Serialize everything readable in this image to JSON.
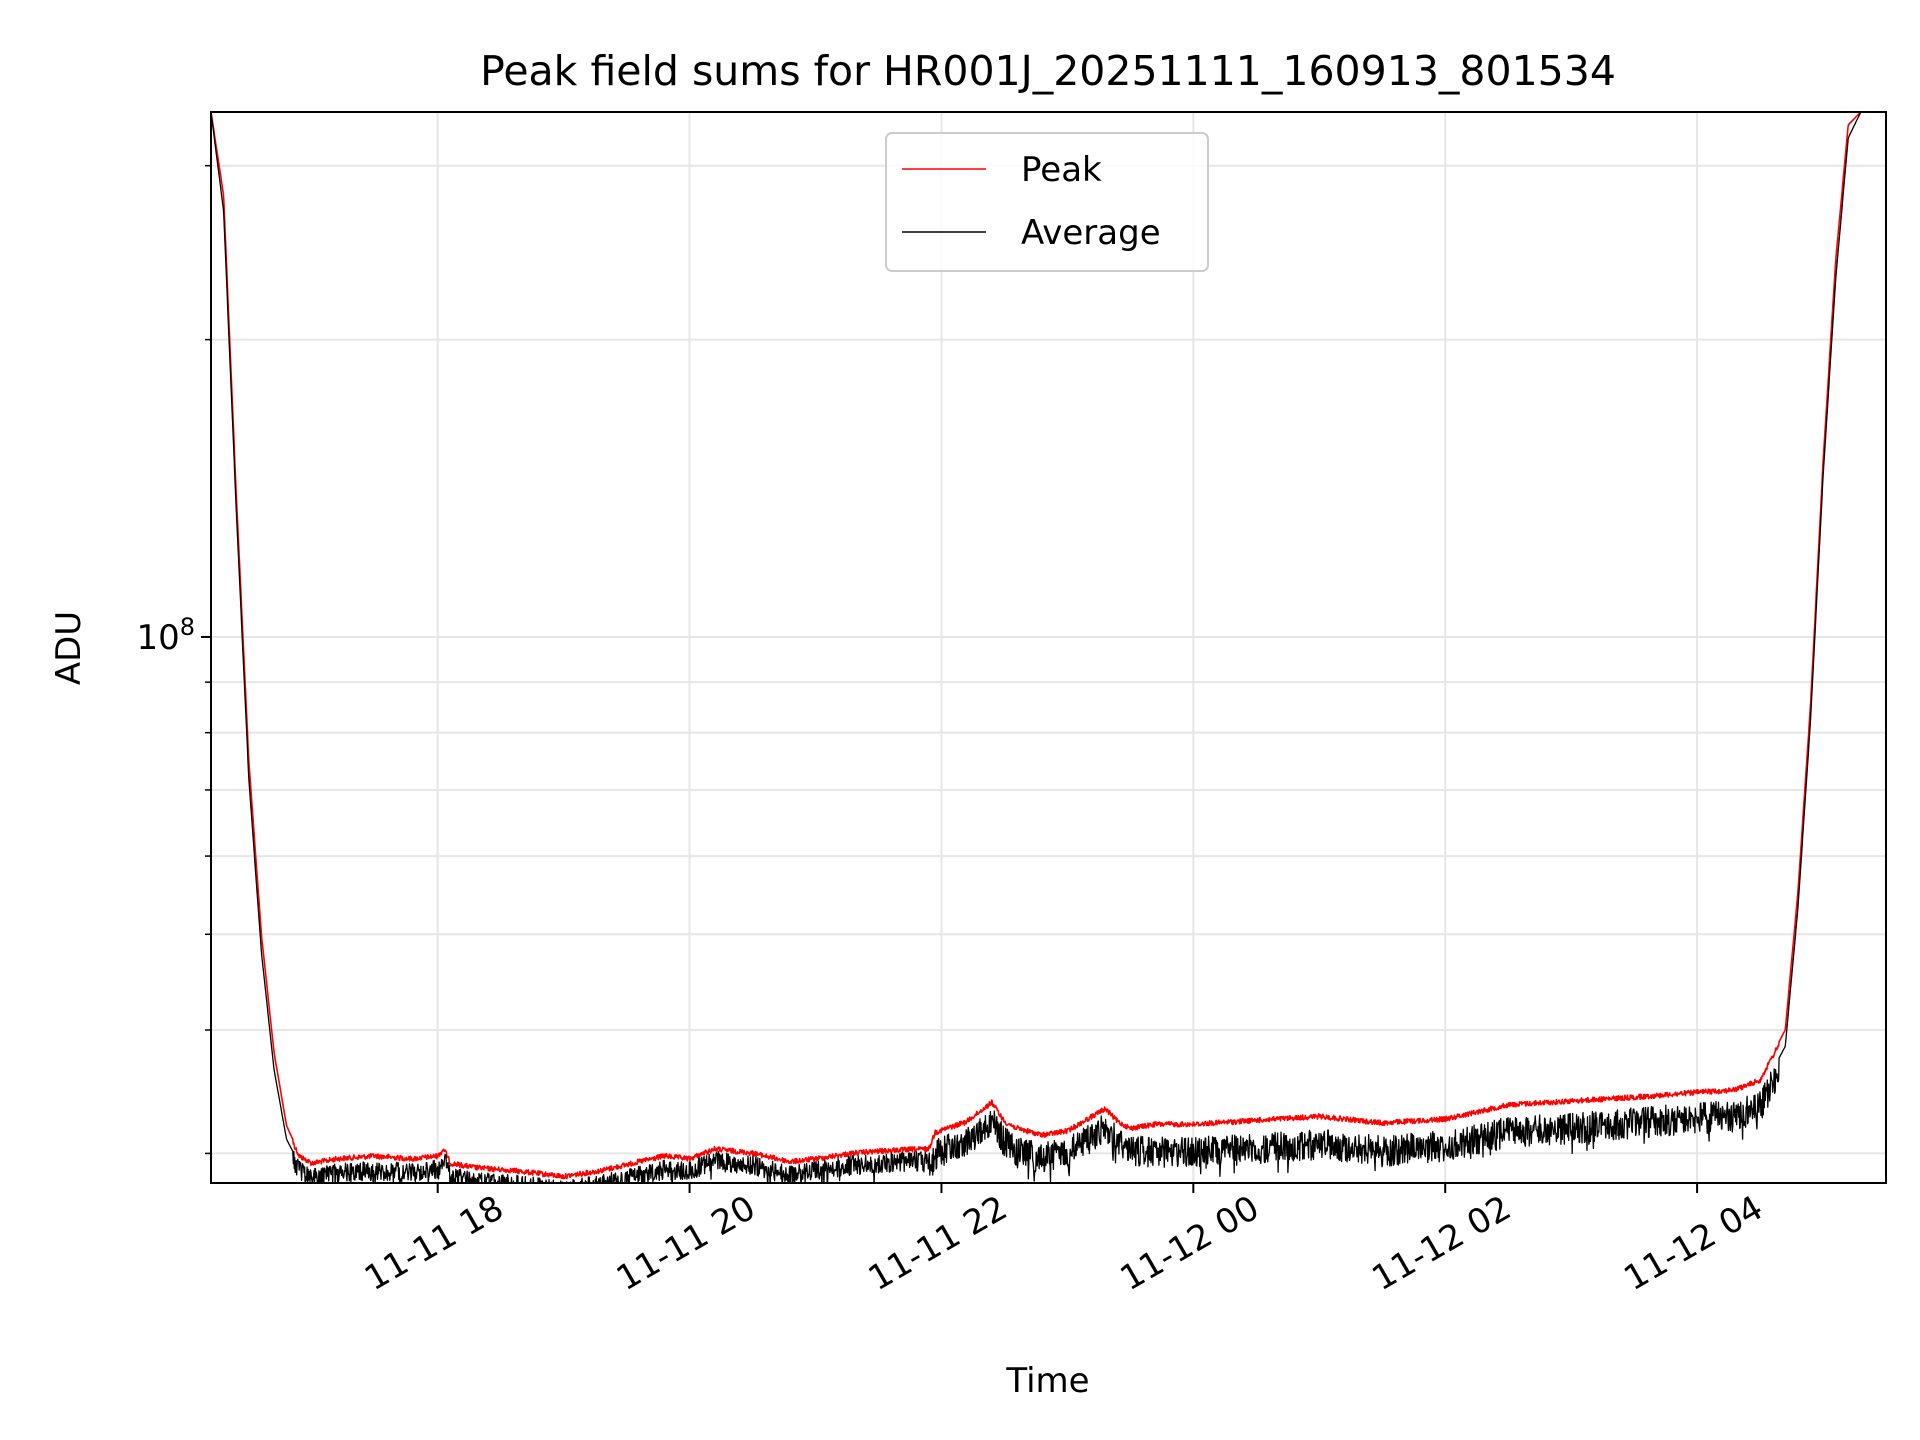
{
  "chart_data": {
    "type": "line",
    "title": "Peak field sums for HR001J_20251111_160913_801534",
    "xlabel": "Time",
    "ylabel": "ADU",
    "y_scale": "log",
    "ylim": [
      28000000,
      340000000
    ],
    "xlim_hours": [
      16.2,
      29.5
    ],
    "grid": true,
    "legend_position": "upper center",
    "x_ticks": [
      {
        "hour": 18,
        "label": "11-11 18"
      },
      {
        "hour": 20,
        "label": "11-11 20"
      },
      {
        "hour": 22,
        "label": "11-11 22"
      },
      {
        "hour": 24,
        "label": "11-12 00"
      },
      {
        "hour": 26,
        "label": "11-12 02"
      },
      {
        "hour": 28,
        "label": "11-12 04"
      }
    ],
    "y_major_ticks": [
      {
        "value": 100000000,
        "base": "10",
        "exp": "8"
      }
    ],
    "y_minor_ticks": [
      30000000,
      40000000,
      50000000,
      60000000,
      70000000,
      80000000,
      90000000,
      200000000,
      300000000
    ],
    "series": [
      {
        "name": "Peak",
        "color": "#ff0000",
        "hours": [
          16.2,
          16.3,
          16.4,
          16.5,
          16.6,
          16.7,
          16.8,
          16.9,
          17.0,
          17.2,
          17.5,
          17.8,
          18.0,
          18.05,
          18.1,
          18.3,
          18.6,
          19.0,
          19.3,
          19.6,
          19.8,
          20.0,
          20.2,
          20.5,
          20.8,
          21.0,
          21.3,
          21.6,
          21.9,
          21.95,
          22.2,
          22.4,
          22.5,
          22.6,
          22.8,
          23.0,
          23.3,
          23.4,
          23.5,
          23.7,
          24.0,
          24.5,
          25.0,
          25.5,
          26.0,
          26.5,
          27.0,
          27.5,
          28.0,
          28.3,
          28.5,
          28.7,
          28.8,
          28.9,
          29.0,
          29.1,
          29.2,
          29.3,
          29.4,
          29.5
        ],
        "values": [
          340000000,
          280000000,
          140000000,
          75000000,
          50000000,
          38000000,
          32000000,
          30000000,
          29500000,
          29800000,
          30000000,
          29800000,
          30000000,
          30500000,
          29500000,
          29200000,
          29000000,
          28600000,
          29000000,
          29600000,
          30000000,
          29800000,
          30500000,
          30200000,
          29600000,
          29800000,
          30200000,
          30400000,
          30500000,
          31700000,
          32500000,
          34000000,
          32500000,
          32000000,
          31500000,
          31800000,
          33500000,
          32500000,
          32000000,
          32300000,
          32300000,
          32600000,
          32900000,
          32400000,
          32700000,
          33800000,
          34100000,
          34400000,
          34800000,
          35000000,
          35800000,
          40000000,
          55000000,
          85000000,
          150000000,
          240000000,
          330000000,
          340000000,
          340000000,
          340000000
        ]
      },
      {
        "name": "Average",
        "color": "#000000",
        "hours": [
          16.2,
          16.3,
          16.4,
          16.5,
          16.6,
          16.7,
          16.8,
          16.9,
          17.0,
          17.2,
          17.5,
          17.8,
          18.0,
          18.05,
          18.1,
          18.3,
          18.6,
          19.0,
          19.3,
          19.6,
          19.8,
          20.0,
          20.2,
          20.5,
          20.8,
          21.0,
          21.3,
          21.6,
          21.9,
          21.95,
          22.2,
          22.4,
          22.5,
          22.6,
          22.8,
          23.0,
          23.3,
          23.4,
          23.5,
          23.7,
          24.0,
          24.5,
          25.0,
          25.5,
          26.0,
          26.5,
          27.0,
          27.5,
          28.0,
          28.3,
          28.5,
          28.7,
          28.8,
          28.9,
          29.0,
          29.1,
          29.2,
          29.3,
          29.4,
          29.5
        ],
        "values": [
          340000000,
          270000000,
          135000000,
          72000000,
          48000000,
          36500000,
          31000000,
          29300000,
          28900000,
          29200000,
          29300000,
          29200000,
          29500000,
          30200000,
          28900000,
          28600000,
          28400000,
          28000000,
          28400000,
          29000000,
          29400000,
          29300000,
          30000000,
          29700000,
          29000000,
          29300000,
          29700000,
          29900000,
          30000000,
          30800000,
          31800000,
          33500000,
          31800000,
          31000000,
          30600000,
          31000000,
          32800000,
          31800000,
          31200000,
          31000000,
          31000000,
          31300000,
          31600000,
          31100000,
          31500000,
          32500000,
          32800000,
          33200000,
          33600000,
          33800000,
          34500000,
          38500000,
          53000000,
          82000000,
          145000000,
          230000000,
          320000000,
          340000000,
          340000000,
          340000000
        ]
      }
    ]
  }
}
